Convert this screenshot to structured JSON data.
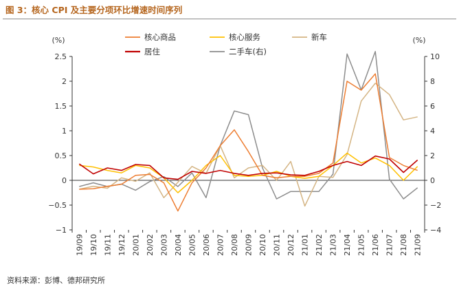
{
  "header": {
    "title": "图 3：核心 CPI 及主要分项环比增速时间序列"
  },
  "footer": {
    "source": "资料来源：彭博、德邦研究所"
  },
  "chart_data": {
    "type": "line",
    "left_axis": {
      "unit": "(%)",
      "ylim": [
        -1,
        2.5
      ],
      "ticks": [
        -1,
        -0.5,
        0,
        0.5,
        1,
        1.5,
        2,
        2.5
      ],
      "tick_labels": [
        "−1",
        "−0.5",
        "0",
        "0.5",
        "1",
        "1.5",
        "2",
        "2.5"
      ]
    },
    "right_axis": {
      "unit": "(%)",
      "ylim": [
        -4,
        10
      ],
      "ticks": [
        -4,
        -2,
        0,
        2,
        4,
        6,
        8,
        10
      ],
      "tick_labels": [
        "−4",
        "−2",
        "0",
        "2",
        "4",
        "6",
        "8",
        "10"
      ]
    },
    "x": [
      "19/09",
      "19/10",
      "19/11",
      "19/12",
      "20/01",
      "20/02",
      "20/03",
      "20/04",
      "20/05",
      "20/06",
      "20/07",
      "20/08",
      "20/09",
      "20/10",
      "20/11",
      "20/12",
      "21/01",
      "21/02",
      "21/03",
      "21/04",
      "21/05",
      "21/06",
      "21/07",
      "21/08",
      "21/09"
    ],
    "x_labels": [
      "19/09",
      "19/10",
      "19/11",
      "19/12",
      "20/01",
      "20/02",
      "20/03",
      "20/04",
      "20/05",
      "20/06",
      "20/07",
      "20/08",
      "20/09",
      "20/10",
      "20/11",
      "20/12",
      "21/01",
      "21/02",
      "21/03",
      "21/04",
      "21/05",
      "21/06",
      "21/07",
      "21/08",
      "21/09"
    ],
    "series": [
      {
        "name": "核心商品",
        "axis": "left",
        "color": "#ed7d31",
        "values": [
          -0.18,
          -0.17,
          -0.12,
          -0.08,
          0.1,
          0.12,
          -0.05,
          -0.62,
          -0.05,
          0.25,
          0.7,
          1.02,
          0.58,
          0.1,
          0.05,
          0.08,
          0.08,
          0.14,
          0.35,
          2.0,
          1.82,
          2.15,
          0.46,
          0.3,
          0.2
        ]
      },
      {
        "name": "核心服务",
        "axis": "left",
        "color": "#ffc000",
        "values": [
          0.3,
          0.27,
          0.2,
          0.15,
          0.3,
          0.25,
          0.05,
          -0.25,
          0.0,
          0.3,
          0.5,
          0.1,
          0.08,
          0.1,
          0.18,
          0.08,
          0.04,
          0.08,
          0.3,
          0.55,
          0.35,
          0.45,
          0.3,
          0.0,
          0.28
        ]
      },
      {
        "name": "新车",
        "axis": "left",
        "color": "#d4b483",
        "values": [
          -0.18,
          -0.12,
          -0.16,
          0.05,
          -0.02,
          0.15,
          -0.35,
          -0.04,
          0.28,
          0.14,
          0.7,
          0.05,
          0.25,
          0.3,
          0.0,
          0.38,
          -0.52,
          0.08,
          0.06,
          0.52,
          1.6,
          1.96,
          1.73,
          1.22,
          1.28
        ]
      },
      {
        "name": "居住",
        "axis": "left",
        "color": "#c00000",
        "values": [
          0.33,
          0.13,
          0.25,
          0.2,
          0.32,
          0.3,
          0.05,
          0.02,
          0.18,
          0.14,
          0.2,
          0.14,
          0.1,
          0.14,
          0.15,
          0.11,
          0.1,
          0.18,
          0.3,
          0.38,
          0.3,
          0.49,
          0.43,
          0.16,
          0.41
        ]
      },
      {
        "name": "二手车(右)",
        "axis": "right",
        "color": "#8c8c8c",
        "values": [
          -0.5,
          -0.2,
          -0.5,
          -0.3,
          -0.8,
          -0.1,
          0.3,
          -0.5,
          0.6,
          -1.4,
          2.8,
          5.6,
          5.3,
          1.0,
          -1.5,
          -0.9,
          -0.9,
          -0.9,
          0.5,
          10.2,
          7.3,
          10.4,
          0.1,
          -1.5,
          -0.6
        ]
      }
    ]
  }
}
